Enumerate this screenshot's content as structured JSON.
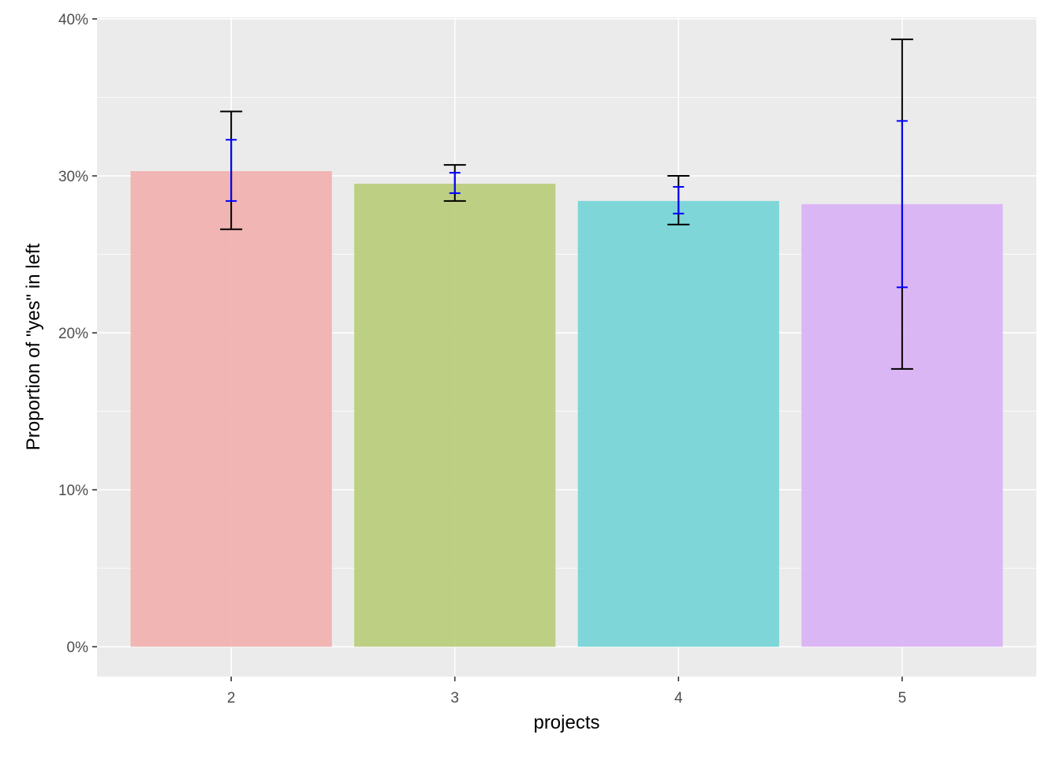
{
  "chart_data": {
    "type": "bar",
    "xlabel": "projects",
    "ylabel": "Proportion of \"yes\" in left",
    "categories": [
      "2",
      "3",
      "4",
      "5"
    ],
    "values": [
      0.303,
      0.295,
      0.284,
      0.282
    ],
    "error_outer": [
      {
        "low": 0.266,
        "high": 0.341
      },
      {
        "low": 0.284,
        "high": 0.307
      },
      {
        "low": 0.269,
        "high": 0.3
      },
      {
        "low": 0.177,
        "high": 0.387
      }
    ],
    "error_inner": [
      {
        "low": 0.284,
        "high": 0.323
      },
      {
        "low": 0.289,
        "high": 0.302
      },
      {
        "low": 0.276,
        "high": 0.293
      },
      {
        "low": 0.229,
        "high": 0.335
      }
    ],
    "ylim": [
      -0.019,
      0.401
    ],
    "yticks": [
      0,
      0.1,
      0.2,
      0.3,
      0.4
    ],
    "ytick_labels": [
      "0%",
      "10%",
      "20%",
      "30%",
      "40%"
    ],
    "grid": true,
    "legend": "none",
    "colors": {
      "bars": [
        "#f1b0ae",
        "#b8cc79",
        "#74d4d6",
        "#d9b1f5"
      ],
      "panel_background": "#ebebeb",
      "grid": "#ffffff",
      "error_outer": "#000000",
      "error_inner": "#0000ff"
    }
  }
}
